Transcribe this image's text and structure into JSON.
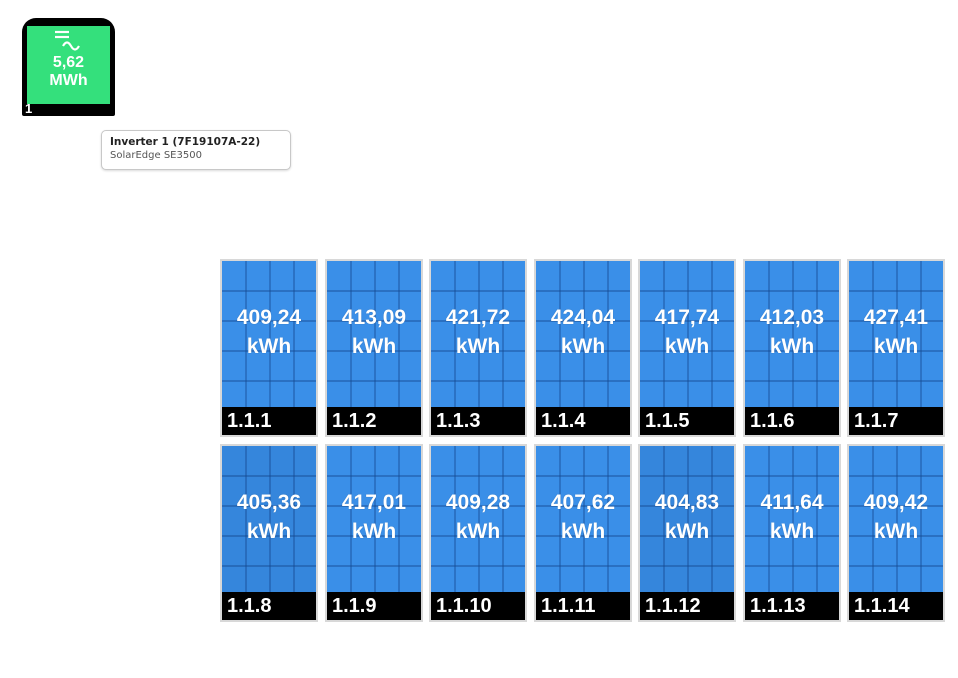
{
  "inverter": {
    "number": "1",
    "energy_value": "5,62",
    "energy_unit": "MWh",
    "icon": "dc-to-ac-icon",
    "screen_color": "#34e07c"
  },
  "info_card": {
    "title": "Inverter 1 (7F19107A-22)",
    "subtitle": "SolarEdge SE3500"
  },
  "panels": [
    {
      "id": "1.1.1",
      "value": "409,24",
      "unit": "kWh"
    },
    {
      "id": "1.1.2",
      "value": "413,09",
      "unit": "kWh"
    },
    {
      "id": "1.1.3",
      "value": "421,72",
      "unit": "kWh"
    },
    {
      "id": "1.1.4",
      "value": "424,04",
      "unit": "kWh"
    },
    {
      "id": "1.1.5",
      "value": "417,74",
      "unit": "kWh"
    },
    {
      "id": "1.1.6",
      "value": "412,03",
      "unit": "kWh"
    },
    {
      "id": "1.1.7",
      "value": "427,41",
      "unit": "kWh"
    },
    {
      "id": "1.1.8",
      "value": "405,36",
      "unit": "kWh"
    },
    {
      "id": "1.1.9",
      "value": "417,01",
      "unit": "kWh"
    },
    {
      "id": "1.1.10",
      "value": "409,28",
      "unit": "kWh"
    },
    {
      "id": "1.1.11",
      "value": "407,62",
      "unit": "kWh"
    },
    {
      "id": "1.1.12",
      "value": "404,83",
      "unit": "kWh"
    },
    {
      "id": "1.1.13",
      "value": "411,64",
      "unit": "kWh"
    },
    {
      "id": "1.1.14",
      "value": "409,42",
      "unit": "kWh"
    }
  ],
  "colors": {
    "panel_blue": "#3a8fe8",
    "panel_dim_blue": "#3586dc",
    "label_bg": "#000000"
  }
}
